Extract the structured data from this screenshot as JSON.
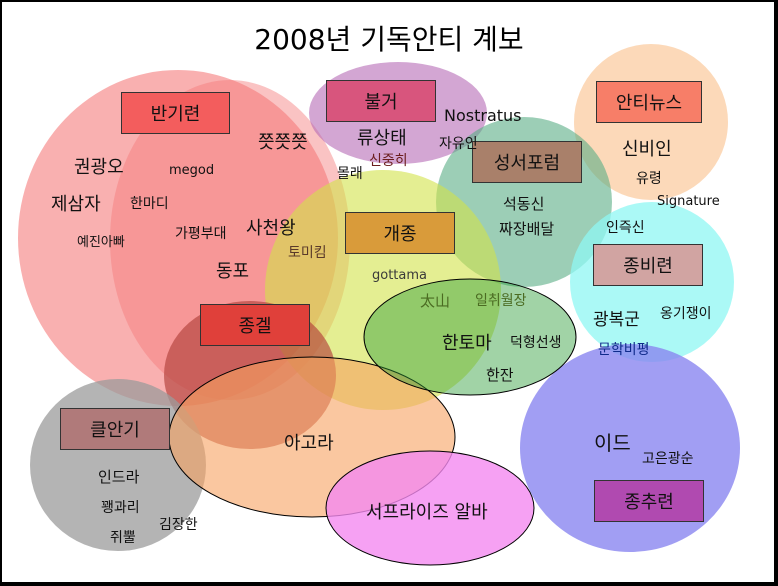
{
  "title": "2008년 기독안티 계보",
  "groups": {
    "bangiryeon": "반기련",
    "bulgeo": "불거",
    "antinews": "안티뉴스",
    "seongseo": "성서포럼",
    "gaejong": "개종",
    "jongbiryeon": "종비련",
    "jonggeol": "종겔",
    "keulangi": "클안기",
    "jongchuryeon": "종추련"
  },
  "members": {
    "jjjj": "쯧쯧쯧",
    "kwongwango": "권광오",
    "megod": "megod",
    "jesamja": "제삼자",
    "hanmadi": "한마디",
    "yejinappa": "예진아빠",
    "gapyeong": "가평부대",
    "sacheonwang": "사천왕",
    "dongpo": "동포",
    "tomikim": "토미킴",
    "gottama": "gottama",
    "ryusangtae": "류상태",
    "sinjunghee": "신중히",
    "mollae": "몰래",
    "nostratus": "Nostratus",
    "jayuin": "자유인",
    "seokdongsin": "석동신",
    "jjajang": "짜장배달",
    "sinbiin": "신비인",
    "yureong": "유령",
    "signature": "Signature",
    "injeuksin": "인즉신",
    "gwangbokgun": "광복군",
    "onggi": "옹기쟁이",
    "munhak": "문학비평",
    "taesan": "太山",
    "ilchwi": "일취월장",
    "hantoma": "한토마",
    "deokhyeong": "덕형선생",
    "hanjan": "한잔",
    "agora": "아고라",
    "indra": "인드라",
    "jjaengguari": "꽹과리",
    "gimjanghan": "김장한",
    "jwiddul": "쥐뿔",
    "surprise": "서프라이즈 알바",
    "ide": "이드",
    "goeungwangsun": "고은광순"
  },
  "colors": {
    "bangiryeon": "#f57b7b",
    "bulgeo": "#b56ab5",
    "seongseo": "#5aad85",
    "gaejong": "#d2e24a",
    "antinews": "#fbc99b",
    "jongbiryeon": "#8ff7f3",
    "jonggeol": "#b2403a",
    "hantoma": "#2f9e3a",
    "agora": "#f6a260",
    "keulangi": "#9b9b9b",
    "surprise": "#f489f0",
    "ide": "#8a86f0"
  }
}
